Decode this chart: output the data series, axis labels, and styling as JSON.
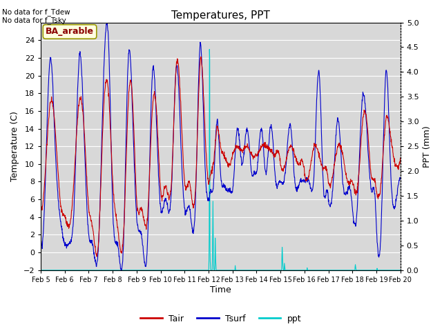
{
  "title": "Temperatures, PPT",
  "xlabel": "Time",
  "ylabel_left": "Temperature (C)",
  "ylabel_right": "PPT (mm)",
  "annotation_line1": "No data for f_Tdew",
  "annotation_line2": "No data for f_Tsky",
  "box_label": "BA_arable",
  "ylim_left": [
    -2,
    26
  ],
  "ylim_right": [
    0.0,
    5.0
  ],
  "yticks_left": [
    -2,
    0,
    2,
    4,
    6,
    8,
    10,
    12,
    14,
    16,
    18,
    20,
    22,
    24
  ],
  "yticks_right": [
    0.0,
    0.5,
    1.0,
    1.5,
    2.0,
    2.5,
    3.0,
    3.5,
    4.0,
    4.5,
    5.0
  ],
  "fig_bg_color": "#ffffff",
  "plot_bg_color": "#d8d8d8",
  "grid_color": "#ffffff",
  "tair_color": "#cc0000",
  "tsurf_color": "#0000cc",
  "ppt_color": "#00cccc",
  "legend_tair": "Tair",
  "legend_tsurf": "Tsurf",
  "legend_ppt": "ppt",
  "ppt_baseline": -2.0,
  "ppt_scale": 0.555
}
